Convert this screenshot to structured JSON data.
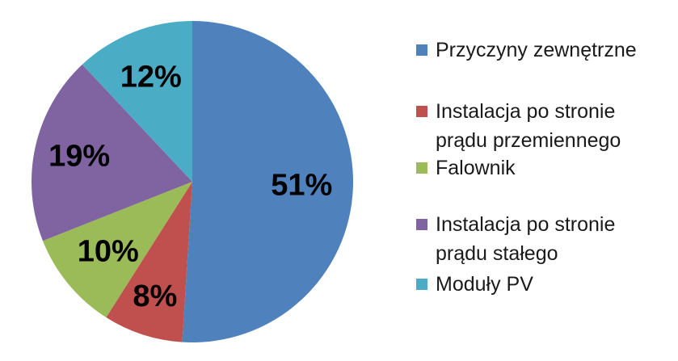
{
  "chart_data": {
    "type": "pie",
    "title": "",
    "start_angle_deg": 0,
    "direction": "clockwise",
    "legend_position": "right",
    "slices": [
      {
        "label": "Przyczyny zewnętrzne",
        "value": 51,
        "display": "51%",
        "color": "#4F81BD"
      },
      {
        "label": "Instalacja po stronie prądu przemiennego",
        "value": 8,
        "display": "8%",
        "color": "#C0504D"
      },
      {
        "label": "Falownik",
        "value": 10,
        "display": "10%",
        "color": "#9BBB59"
      },
      {
        "label": "Instalacja po stronie prądu stałego",
        "value": 19,
        "display": "19%",
        "color": "#8064A2"
      },
      {
        "label": "Moduły PV",
        "value": 12,
        "display": "12%",
        "color": "#4BACC6"
      }
    ]
  }
}
